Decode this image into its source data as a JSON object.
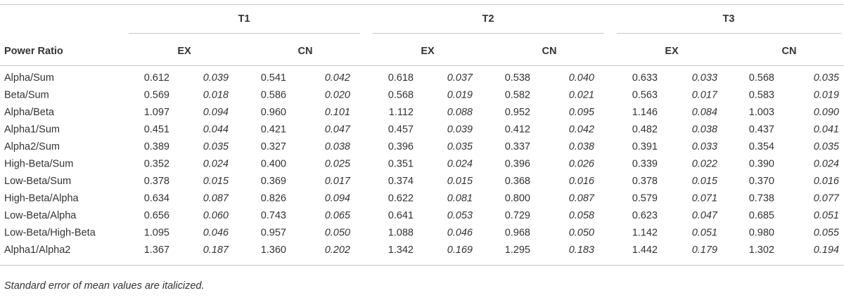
{
  "header": {
    "groups": [
      "T1",
      "T2",
      "T3"
    ],
    "row_label": "Power Ratio",
    "subgroups": [
      "EX",
      "CN",
      "EX",
      "CN",
      "EX",
      "CN"
    ]
  },
  "table": {
    "rows": [
      [
        "Alpha/Sum",
        "0.612",
        "0.039",
        "0.541",
        "0.042",
        "0.618",
        "0.037",
        "0.538",
        "0.040",
        "0.633",
        "0.033",
        "0.568",
        "0.035"
      ],
      [
        "Beta/Sum",
        "0.569",
        "0.018",
        "0.586",
        "0.020",
        "0.568",
        "0.019",
        "0.582",
        "0.021",
        "0.563",
        "0.017",
        "0.583",
        "0.019"
      ],
      [
        "Alpha/Beta",
        "1.097",
        "0.094",
        "0.960",
        "0.101",
        "1.112",
        "0.088",
        "0.952",
        "0.095",
        "1.146",
        "0.084",
        "1.003",
        "0.090"
      ],
      [
        "Alpha1/Sum",
        "0.451",
        "0.044",
        "0.421",
        "0.047",
        "0.457",
        "0.039",
        "0.412",
        "0.042",
        "0.482",
        "0.038",
        "0.437",
        "0.041"
      ],
      [
        "Alpha2/Sum",
        "0.389",
        "0.035",
        "0.327",
        "0.038",
        "0.396",
        "0.035",
        "0.337",
        "0.038",
        "0.391",
        "0.033",
        "0.354",
        "0.035"
      ],
      [
        "High-Beta/Sum",
        "0.352",
        "0.024",
        "0.400",
        "0.025",
        "0.351",
        "0.024",
        "0.396",
        "0.026",
        "0.339",
        "0.022",
        "0.390",
        "0.024"
      ],
      [
        "Low-Beta/Sum",
        "0.378",
        "0.015",
        "0.369",
        "0.017",
        "0.374",
        "0.015",
        "0.368",
        "0.016",
        "0.378",
        "0.015",
        "0.370",
        "0.016"
      ],
      [
        "High-Beta/Alpha",
        "0.634",
        "0.087",
        "0.826",
        "0.094",
        "0.622",
        "0.081",
        "0.800",
        "0.087",
        "0.579",
        "0.071",
        "0.738",
        "0.077"
      ],
      [
        "Low-Beta/Alpha",
        "0.656",
        "0.060",
        "0.743",
        "0.065",
        "0.641",
        "0.053",
        "0.729",
        "0.058",
        "0.623",
        "0.047",
        "0.685",
        "0.051"
      ],
      [
        "Low-Beta/High-Beta",
        "1.095",
        "0.046",
        "0.957",
        "0.050",
        "1.088",
        "0.046",
        "0.968",
        "0.050",
        "1.142",
        "0.051",
        "0.980",
        "0.055"
      ],
      [
        "Alpha1/Alpha2",
        "1.367",
        "0.187",
        "1.360",
        "0.202",
        "1.342",
        "0.169",
        "1.295",
        "0.183",
        "1.442",
        "0.179",
        "1.302",
        "0.194"
      ]
    ]
  },
  "footnote": "Standard error of mean values are italicized."
}
